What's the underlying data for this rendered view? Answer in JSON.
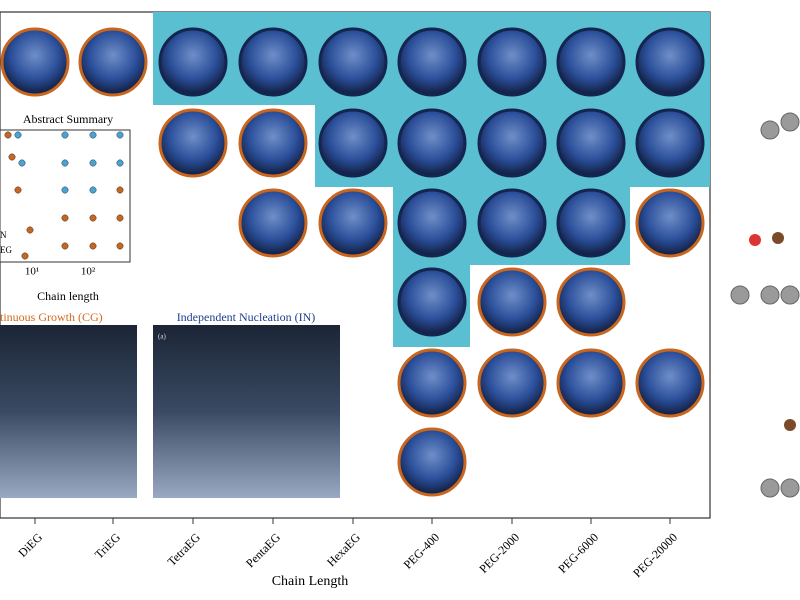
{
  "figure": {
    "inset": {
      "title": "Abstract Summary",
      "xlabel": "Chain length",
      "xticks": [
        "10¹",
        "10²"
      ],
      "legend": [
        "N",
        "EG"
      ]
    },
    "panels": [
      {
        "title": "tinuous Growth (CG)"
      },
      {
        "title": "Independent Nucleation (IN)",
        "tag": "(a)"
      }
    ],
    "x_axis": {
      "label": "Chain Length",
      "categories": [
        "DiEG",
        "TriEG",
        "TetraEG",
        "PentaEG",
        "HexaEG",
        "PEG-400",
        "PEG-2000",
        "PEG-6000",
        "PEG-20000"
      ]
    }
  }
}
